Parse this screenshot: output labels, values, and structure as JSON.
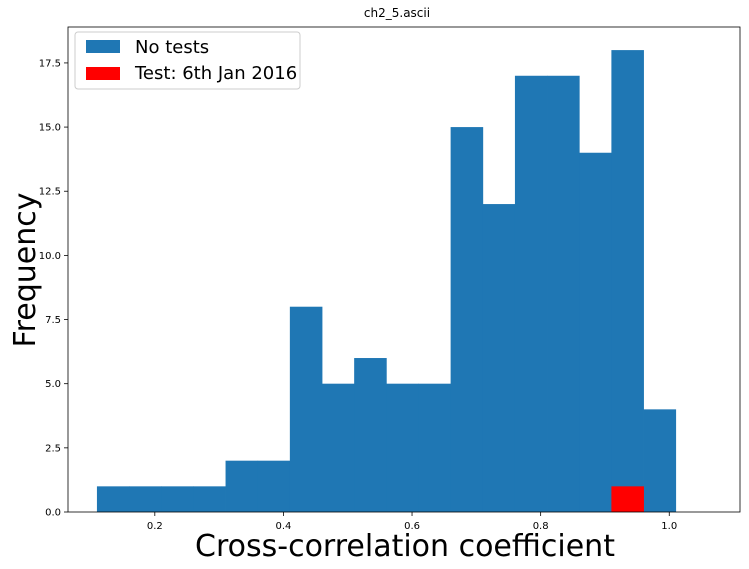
{
  "chart_data": {
    "type": "bar",
    "title": "ch2_5.ascii",
    "xlabel": "Cross-correlation coefficient",
    "ylabel": "Frequency",
    "xlim": [
      0.065,
      1.11
    ],
    "ylim": [
      0,
      18.9
    ],
    "x_ticks": [
      {
        "value": 0.2,
        "label": "0.2"
      },
      {
        "value": 0.4,
        "label": "0.4"
      },
      {
        "value": 0.6,
        "label": "0.6"
      },
      {
        "value": 0.8,
        "label": "0.8"
      },
      {
        "value": 1.0,
        "label": "1.0"
      }
    ],
    "y_ticks": [
      {
        "value": 0.0,
        "label": "0.0"
      },
      {
        "value": 2.5,
        "label": "2.5"
      },
      {
        "value": 5.0,
        "label": "5.0"
      },
      {
        "value": 7.5,
        "label": "7.5"
      },
      {
        "value": 10.0,
        "label": "10.0"
      },
      {
        "value": 12.5,
        "label": "12.5"
      },
      {
        "value": 15.0,
        "label": "15.0"
      },
      {
        "value": 17.5,
        "label": "17.5"
      }
    ],
    "grid": false,
    "legend_position": "top-left",
    "series": [
      {
        "name": "No tests",
        "color": "#1f77b4",
        "bin_edges": [
          0.11,
          0.16,
          0.21,
          0.26,
          0.31,
          0.36,
          0.41,
          0.46,
          0.51,
          0.56,
          0.61,
          0.66,
          0.71,
          0.76,
          0.81,
          0.86,
          0.91,
          0.96,
          1.01
        ],
        "values": [
          1,
          1,
          1,
          1,
          2,
          2,
          8,
          5,
          6,
          5,
          5,
          15,
          12,
          17,
          17,
          14,
          18,
          4
        ]
      },
      {
        "name": "Test: 6th Jan 2016",
        "color": "#ff0000",
        "bin_edges": [
          0.91,
          0.96
        ],
        "values": [
          1
        ]
      }
    ]
  }
}
